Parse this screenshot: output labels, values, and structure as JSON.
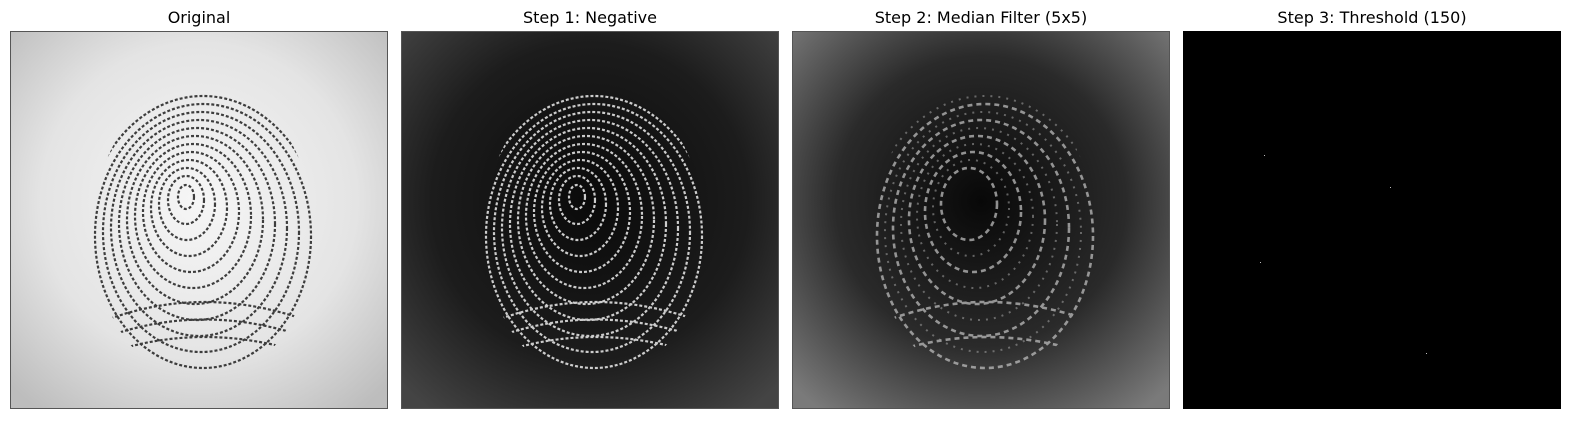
{
  "panels": [
    {
      "title": "Original",
      "image": "fingerprint-original"
    },
    {
      "title": "Step 1: Negative",
      "image": "fingerprint-negative"
    },
    {
      "title": "Step 2: Median Filter (5x5)",
      "image": "fingerprint-median-filtered"
    },
    {
      "title": "Step 3: Threshold (150)",
      "image": "fingerprint-threshold"
    }
  ]
}
